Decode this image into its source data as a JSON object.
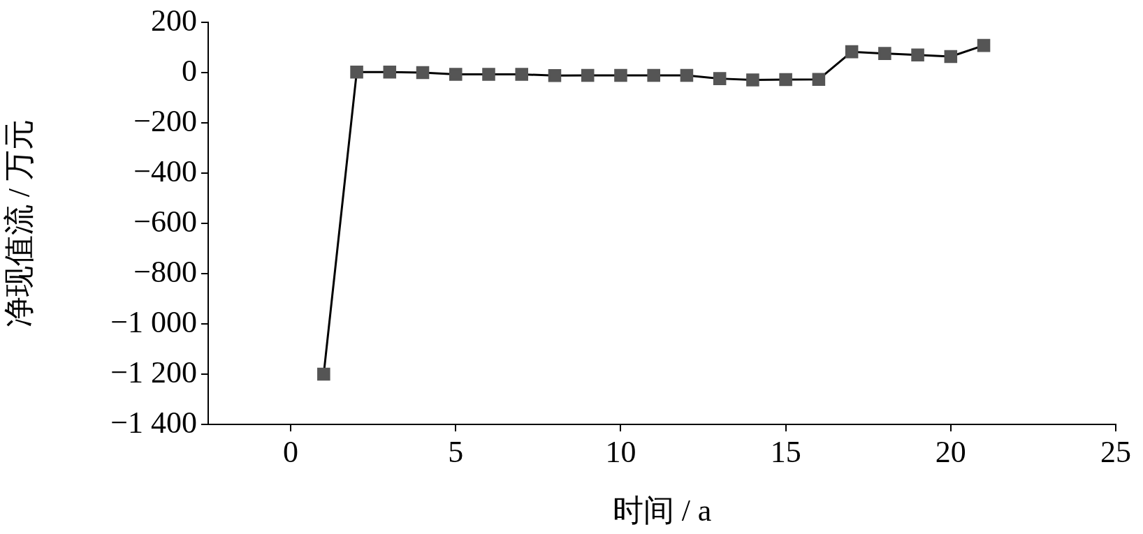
{
  "chart_data": {
    "type": "line",
    "xlabel": "时间 / a",
    "ylabel": "净现值流 / 万元",
    "x": [
      1,
      2,
      3,
      4,
      5,
      6,
      7,
      8,
      9,
      10,
      11,
      12,
      13,
      14,
      15,
      16,
      17,
      18,
      19,
      20,
      21
    ],
    "series": [
      {
        "color": "#555555",
        "values": [
          -1200,
          3,
          3,
          1,
          -6,
          -6,
          -6,
          -11,
          -10,
          -10,
          -10,
          -10,
          -23,
          -28,
          -27,
          -26,
          84,
          77,
          71,
          65,
          109
        ]
      }
    ],
    "xlim": [
      -2.5,
      25
    ],
    "xticks": [
      0,
      5,
      10,
      15,
      20,
      25
    ],
    "ylim": [
      -1400,
      200
    ],
    "yticks": [
      {
        "value": -1400,
        "label": "−1 400"
      },
      {
        "value": -1200,
        "label": "−1 200"
      },
      {
        "value": -1000,
        "label": "−1 000"
      },
      {
        "value": -800,
        "label": "−800"
      },
      {
        "value": -600,
        "label": "−600"
      },
      {
        "value": -400,
        "label": "−400"
      },
      {
        "value": -200,
        "label": "−200"
      },
      0,
      200
    ],
    "grid": false,
    "legend": false,
    "marker": "square",
    "line_style": "solid"
  }
}
